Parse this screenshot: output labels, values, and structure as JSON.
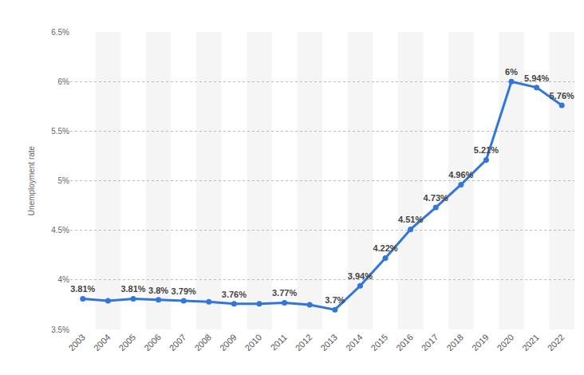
{
  "chart_data": {
    "type": "line",
    "y_label": "Unemployment rate",
    "categories": [
      "2003",
      "2004",
      "2005",
      "2006",
      "2007",
      "2008",
      "2009",
      "2010",
      "2011",
      "2012",
      "2013",
      "2014",
      "2015",
      "2016",
      "2017",
      "2018",
      "2019",
      "2020",
      "2021",
      "2022"
    ],
    "values": [
      3.81,
      3.79,
      3.81,
      3.8,
      3.79,
      3.78,
      3.76,
      3.76,
      3.77,
      3.75,
      3.7,
      3.94,
      4.22,
      4.51,
      4.73,
      4.96,
      5.21,
      6,
      5.94,
      5.76
    ],
    "value_labels": [
      "3.81%",
      null,
      "3.81%",
      "3.8%",
      "3.79%",
      null,
      "3.76%",
      null,
      "3.77%",
      null,
      "3.7%",
      "3.94%",
      "4.22%",
      "4.51%",
      "4.73%",
      "4.96%",
      "5.21%",
      "6%",
      "5.94%",
      "5.76%"
    ],
    "data_labels": true,
    "color": "#3176d9",
    "marker": "circle",
    "ylim": [
      3.5,
      6.5
    ],
    "yticks": [
      {
        "value": 3.5,
        "label": "3.5%"
      },
      {
        "value": 4,
        "label": "4%"
      },
      {
        "value": 4.5,
        "label": "4.5%"
      },
      {
        "value": 5,
        "label": "5%"
      },
      {
        "value": 5.5,
        "label": "5.5%"
      },
      {
        "value": 6,
        "label": "6%"
      },
      {
        "value": 6.5,
        "label": "6.5%"
      }
    ],
    "grid": true
  }
}
